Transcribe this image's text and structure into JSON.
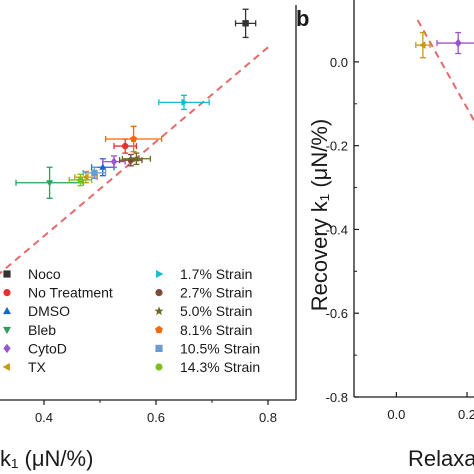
{
  "chart_data": [
    {
      "type": "scatter",
      "panel": "",
      "xlabel": "k₁ (μN/%)",
      "ylabel": "",
      "xlim": [
        0.25,
        0.85
      ],
      "ylim": [
        -0.85,
        0.55
      ],
      "xticks": [
        "0.4",
        "0.6",
        "0.8"
      ],
      "fit_line": [
        [
          0.25,
          -0.52
        ],
        [
          0.8,
          0.4
        ]
      ],
      "series": [
        {
          "name": "Noco",
          "marker": "square",
          "color": "#333333",
          "x": 0.76,
          "y": 0.485,
          "xerr": 0.018,
          "yerr": 0.05
        },
        {
          "name": "No Treatment",
          "marker": "circle",
          "color": "#e8312f",
          "x": 0.545,
          "y": 0.05,
          "xerr": 0.02,
          "yerr": 0.025
        },
        {
          "name": "DMSO",
          "marker": "triangle-up",
          "color": "#1a66cc",
          "x": 0.505,
          "y": -0.025,
          "xerr": 0.02,
          "yerr": 0.03
        },
        {
          "name": "Bleb",
          "marker": "triangle-down",
          "color": "#2aa05a",
          "x": 0.41,
          "y": -0.08,
          "xerr": 0.06,
          "yerr": 0.055
        },
        {
          "name": "CytoD",
          "marker": "diamond",
          "color": "#9a55cc",
          "x": 0.525,
          "y": -0.005,
          "xerr": 0.02,
          "yerr": 0.02
        },
        {
          "name": "TX",
          "marker": "triangle-left",
          "color": "#c89a10",
          "x": 0.475,
          "y": -0.06,
          "xerr": 0.02,
          "yerr": 0.02
        },
        {
          "name": "1.7% Strain",
          "marker": "triangle-right",
          "color": "#17bccc",
          "x": 0.65,
          "y": 0.205,
          "xerr": 0.045,
          "yerr": 0.025
        },
        {
          "name": "2.7% Strain",
          "marker": "circle",
          "color": "#7a4a3a",
          "x": 0.555,
          "y": 0.0,
          "xerr": 0.02,
          "yerr": 0.02
        },
        {
          "name": "5.0% Strain",
          "marker": "star",
          "color": "#6b6b20",
          "x": 0.565,
          "y": 0.005,
          "xerr": 0.025,
          "yerr": 0.02
        },
        {
          "name": "8.1% Strain",
          "marker": "pentagon",
          "color": "#ee6a10",
          "x": 0.56,
          "y": 0.075,
          "xerr": 0.05,
          "yerr": 0.045
        },
        {
          "name": "10.5% Strain",
          "marker": "square",
          "color": "#6b9bd1",
          "x": 0.49,
          "y": -0.045,
          "xerr": 0.02,
          "yerr": 0.02
        },
        {
          "name": "14.3% Strain",
          "marker": "circle",
          "color": "#7ac020",
          "x": 0.465,
          "y": -0.07,
          "xerr": 0.02,
          "yerr": 0.02
        }
      ]
    },
    {
      "type": "scatter",
      "panel": "b",
      "xlabel": "Relaxa",
      "ylabel": "Recovery k₁ (μN/%)",
      "xlim": [
        -0.12,
        0.35
      ],
      "ylim": [
        -0.8,
        0.1
      ],
      "xticks": [
        "0.0",
        "0.2"
      ],
      "yticks": [
        "0.0",
        "-0.2",
        "-0.4",
        "-0.6",
        "-0.8"
      ],
      "fit_line": [
        [
          0.06,
          0.1
        ],
        [
          0.22,
          -0.14
        ]
      ],
      "series": [
        {
          "name": "TX",
          "marker": "triangle-left",
          "color": "#c89a10",
          "x": 0.075,
          "y": 0.04,
          "xerr": 0.02,
          "yerr": 0.03
        },
        {
          "name": "CytoD",
          "marker": "diamond",
          "color": "#9a55cc",
          "x": 0.175,
          "y": 0.045,
          "xerr": 0.06,
          "yerr": 0.025
        }
      ]
    }
  ],
  "legend": {
    "col1": [
      {
        "label": "Noco",
        "marker": "square",
        "color": "#333333"
      },
      {
        "label": "No Treatment",
        "marker": "circle",
        "color": "#e8312f"
      },
      {
        "label": "DMSO",
        "marker": "triangle-up",
        "color": "#1a66cc"
      },
      {
        "label": "Bleb",
        "marker": "triangle-down",
        "color": "#2aa05a"
      },
      {
        "label": "CytoD",
        "marker": "diamond",
        "color": "#9a55cc"
      },
      {
        "label": "TX",
        "marker": "triangle-left",
        "color": "#c89a10"
      }
    ],
    "col2": [
      {
        "label": "1.7% Strain",
        "marker": "triangle-right",
        "color": "#17bccc"
      },
      {
        "label": "2.7% Strain",
        "marker": "circle",
        "color": "#7a4a3a"
      },
      {
        "label": "5.0% Strain",
        "marker": "star",
        "color": "#6b6b20"
      },
      {
        "label": "8.1% Strain",
        "marker": "pentagon",
        "color": "#ee6a10"
      },
      {
        "label": "10.5% Strain",
        "marker": "square",
        "color": "#6b9bd1"
      },
      {
        "label": "14.3% Strain",
        "marker": "circle",
        "color": "#7ac020"
      }
    ]
  },
  "colors": {
    "fit_line": "#e56a6a",
    "axis": "#1a1a1a"
  }
}
